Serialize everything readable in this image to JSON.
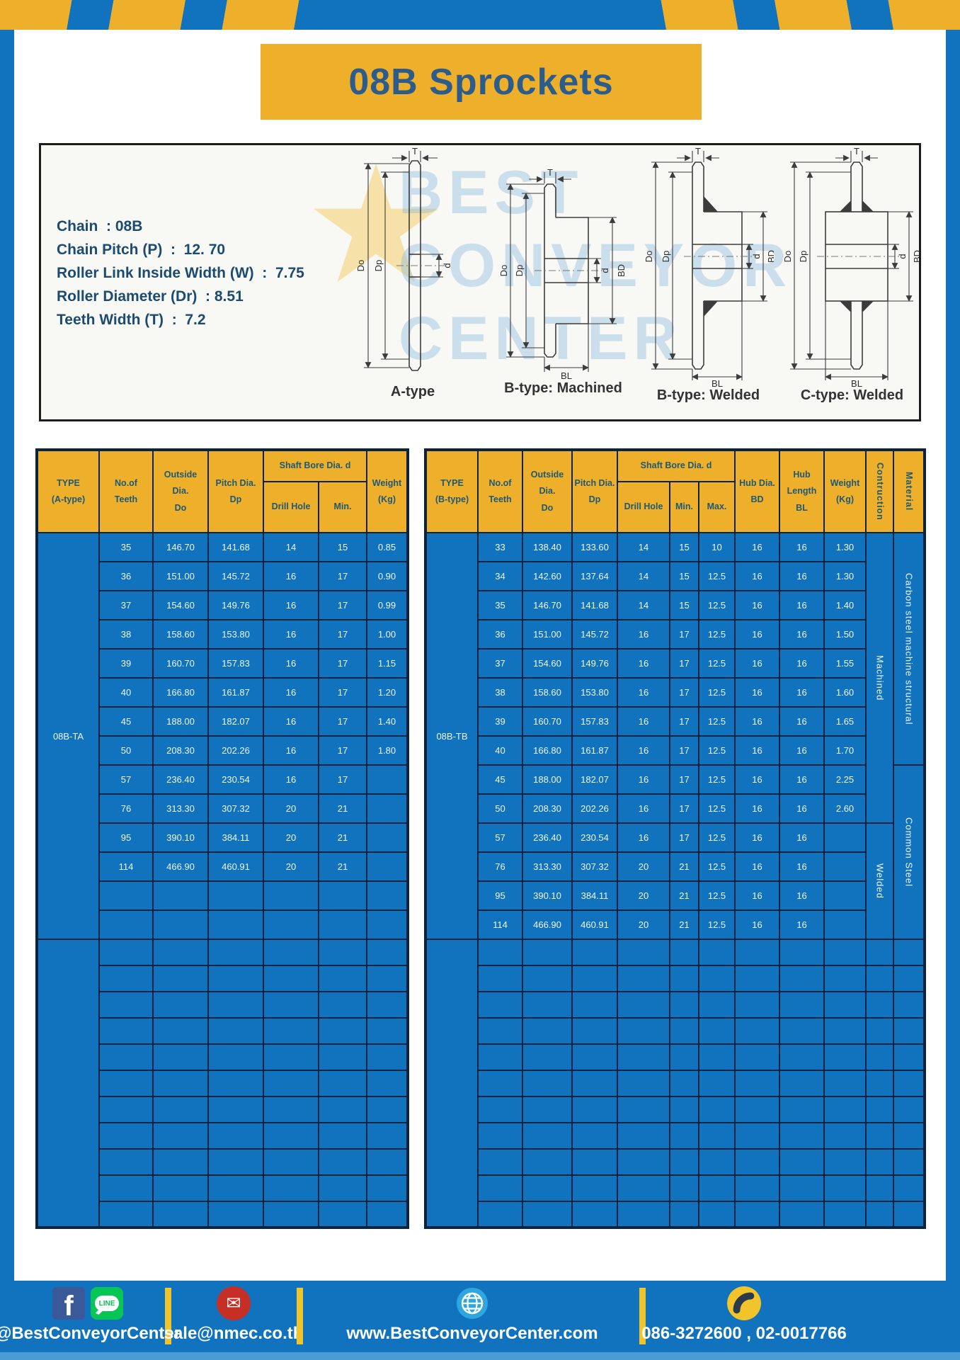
{
  "title": "08B Sprockets",
  "specs": {
    "lines": [
      "Chain  : 08B",
      "Chain Pitch (P)  :  12. 70",
      "Roller Link Inside Width (W)  :  7.75",
      "Roller Diameter (Dr)  : 8.51",
      "Teeth Width (T)  :  7.2"
    ]
  },
  "diagram": {
    "watermark": [
      "BEST",
      "CONVEYOR",
      "CENTER"
    ],
    "variants": [
      "A-type",
      "B-type: Machined",
      "B-type: Welded",
      "C-type: Welded"
    ],
    "dims": {
      "T": "T",
      "Do": "Do",
      "Dp": "Dp",
      "d": "d",
      "BD": "BD",
      "BL": "BL"
    }
  },
  "table_a": {
    "headers": {
      "type": [
        "TYPE",
        "(A-type)"
      ],
      "teeth": [
        "No.of",
        "Teeth"
      ],
      "outside": [
        "Outside",
        "Dia.",
        "Do"
      ],
      "pitch": [
        "Pitch Dia.",
        "Dp"
      ],
      "shaft_bore": "Shaft Bore Dia. d",
      "drill": "Drill Hole",
      "min": "Min.",
      "weight": [
        "Weight",
        "(Kg)"
      ]
    },
    "type_label": "08B-TA",
    "rows": [
      [
        "35",
        "146.70",
        "141.68",
        "14",
        "15",
        "0.85"
      ],
      [
        "36",
        "151.00",
        "145.72",
        "16",
        "17",
        "0.90"
      ],
      [
        "37",
        "154.60",
        "149.76",
        "16",
        "17",
        "0.99"
      ],
      [
        "38",
        "158.60",
        "153.80",
        "16",
        "17",
        "1.00"
      ],
      [
        "39",
        "160.70",
        "157.83",
        "16",
        "17",
        "1.15"
      ],
      [
        "40",
        "166.80",
        "161.87",
        "16",
        "17",
        "1.20"
      ],
      [
        "45",
        "188.00",
        "182.07",
        "16",
        "17",
        "1.40"
      ],
      [
        "50",
        "208.30",
        "202.26",
        "16",
        "17",
        "1.80"
      ],
      [
        "57",
        "236.40",
        "230.54",
        "16",
        "17",
        ""
      ],
      [
        "76",
        "313.30",
        "307.32",
        "20",
        "21",
        ""
      ],
      [
        "95",
        "390.10",
        "384.11",
        "20",
        "21",
        ""
      ],
      [
        "114",
        "466.90",
        "460.91",
        "20",
        "21",
        ""
      ],
      [
        "",
        "",
        "",
        "",
        "",
        ""
      ],
      [
        "",
        "",
        "",
        "",
        "",
        ""
      ]
    ],
    "empty_rows": 11
  },
  "table_b": {
    "headers": {
      "type": [
        "TYPE",
        "(B-type)"
      ],
      "teeth": [
        "No.of",
        "Teeth"
      ],
      "outside": [
        "Outside",
        "Dia.",
        "Do"
      ],
      "pitch": [
        "Pitch Dia.",
        "Dp"
      ],
      "shaft_bore": "Shaft Bore Dia. d",
      "drill": "Drill Hole",
      "min": "Min.",
      "max": "Max.",
      "hub_dia": [
        "Hub Dia.",
        "BD"
      ],
      "hub_len": [
        "Hub",
        "Length",
        "BL"
      ],
      "weight": [
        "Weight",
        "(Kg)"
      ],
      "construction": "Contruction",
      "material": "Material"
    },
    "type_label": "08B-TB",
    "rows": [
      [
        "33",
        "138.40",
        "133.60",
        "14",
        "15",
        "10",
        "16",
        "16",
        "1.30"
      ],
      [
        "34",
        "142.60",
        "137.64",
        "14",
        "15",
        "12.5",
        "16",
        "16",
        "1.30"
      ],
      [
        "35",
        "146.70",
        "141.68",
        "14",
        "15",
        "12.5",
        "16",
        "16",
        "1.40"
      ],
      [
        "36",
        "151.00",
        "145.72",
        "16",
        "17",
        "12.5",
        "16",
        "16",
        "1.50"
      ],
      [
        "37",
        "154.60",
        "149.76",
        "16",
        "17",
        "12.5",
        "16",
        "16",
        "1.55"
      ],
      [
        "38",
        "158.60",
        "153.80",
        "16",
        "17",
        "12.5",
        "16",
        "16",
        "1.60"
      ],
      [
        "39",
        "160.70",
        "157.83",
        "16",
        "17",
        "12.5",
        "16",
        "16",
        "1.65"
      ],
      [
        "40",
        "166.80",
        "161.87",
        "16",
        "17",
        "12.5",
        "16",
        "16",
        "1.70"
      ],
      [
        "45",
        "188.00",
        "182.07",
        "16",
        "17",
        "12.5",
        "16",
        "16",
        "2.25"
      ],
      [
        "50",
        "208.30",
        "202.26",
        "16",
        "17",
        "12.5",
        "16",
        "16",
        "2.60"
      ],
      [
        "57",
        "236.40",
        "230.54",
        "16",
        "17",
        "12.5",
        "16",
        "16",
        ""
      ],
      [
        "76",
        "313.30",
        "307.32",
        "20",
        "21",
        "12.5",
        "16",
        "16",
        ""
      ],
      [
        "95",
        "390.10",
        "384.11",
        "20",
        "21",
        "12.5",
        "16",
        "16",
        ""
      ],
      [
        "114",
        "466.90",
        "460.91",
        "20",
        "21",
        "12.5",
        "16",
        "16",
        ""
      ]
    ],
    "construction_groups": [
      {
        "label": "Machined",
        "span": 10
      },
      {
        "label": "Welded",
        "span": 4
      }
    ],
    "material_groups": [
      {
        "label": "Carbon steel  machine structural",
        "span": 8
      },
      {
        "label": "Common  Steel",
        "span": 6
      }
    ],
    "empty_rows": 11
  },
  "footer": {
    "social_label": "@BestConveyorCenter",
    "line_icon_text": "LINE",
    "facebook_icon_text": "f",
    "email": "sale@nmec.co.th",
    "website": "www.BestConveyorCenter.com",
    "phones": "086-3272600 , 02-0017766"
  },
  "colors": {
    "brand_blue": "#1173BD",
    "brand_yellow": "#EEB02B",
    "table_navy": "#0C2340",
    "header_text": "#1C5877",
    "title_text": "#2B5C8C",
    "footer_strip": "#4B9BD5",
    "facebook_blue": "#3B5998",
    "line_green": "#06C755",
    "mail_red": "#C62F26",
    "globe_blue": "#2EA7E0",
    "phone_yellow": "#F2C42C"
  }
}
